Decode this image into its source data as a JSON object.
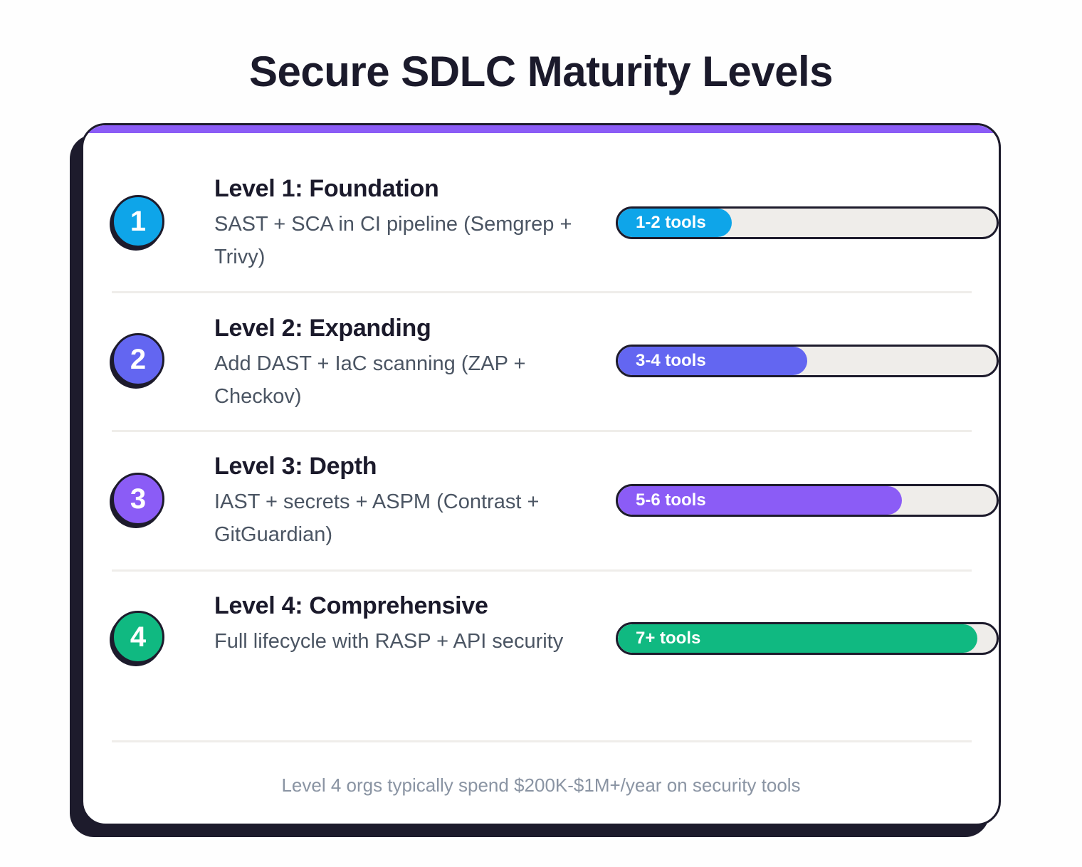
{
  "title": "Secure SDLC Maturity Levels",
  "levels": [
    {
      "number": "1",
      "title": "Level 1: Foundation",
      "description": "SAST + SCA in CI pipeline (Semgrep + Trivy)",
      "bar_label": "1-2 tools",
      "fill_percent": 30,
      "color": "#0ea5e9"
    },
    {
      "number": "2",
      "title": "Level 2: Expanding",
      "description": "Add DAST + IaC scanning (ZAP + Checkov)",
      "bar_label": "3-4 tools",
      "fill_percent": 50,
      "color": "#6366f1"
    },
    {
      "number": "3",
      "title": "Level 3: Depth",
      "description": "IAST + secrets + ASPM (Contrast + GitGuardian)",
      "bar_label": "5-6 tools",
      "fill_percent": 75,
      "color": "#8b5cf6"
    },
    {
      "number": "4",
      "title": "Level 4: Comprehensive",
      "description": "Full lifecycle with RASP + API security",
      "bar_label": "7+ tools",
      "fill_percent": 95,
      "color": "#10b981"
    }
  ],
  "footer": "Level 4 orgs typically spend $200K-$1M+/year on security tools",
  "colors": {
    "accent_stripe": "#8b5cf6",
    "ink": "#1d1b2c",
    "track": "#efedea"
  },
  "chart_data": {
    "type": "bar",
    "title": "Secure SDLC Maturity Levels",
    "categories": [
      "Level 1: Foundation",
      "Level 2: Expanding",
      "Level 3: Depth",
      "Level 4: Comprehensive"
    ],
    "values": [
      30,
      50,
      75,
      95
    ],
    "value_labels": [
      "1-2 tools",
      "3-4 tools",
      "5-6 tools",
      "7+ tools"
    ],
    "orientation": "horizontal",
    "xlabel": "",
    "ylabel": "",
    "ylim": [
      0,
      100
    ]
  }
}
